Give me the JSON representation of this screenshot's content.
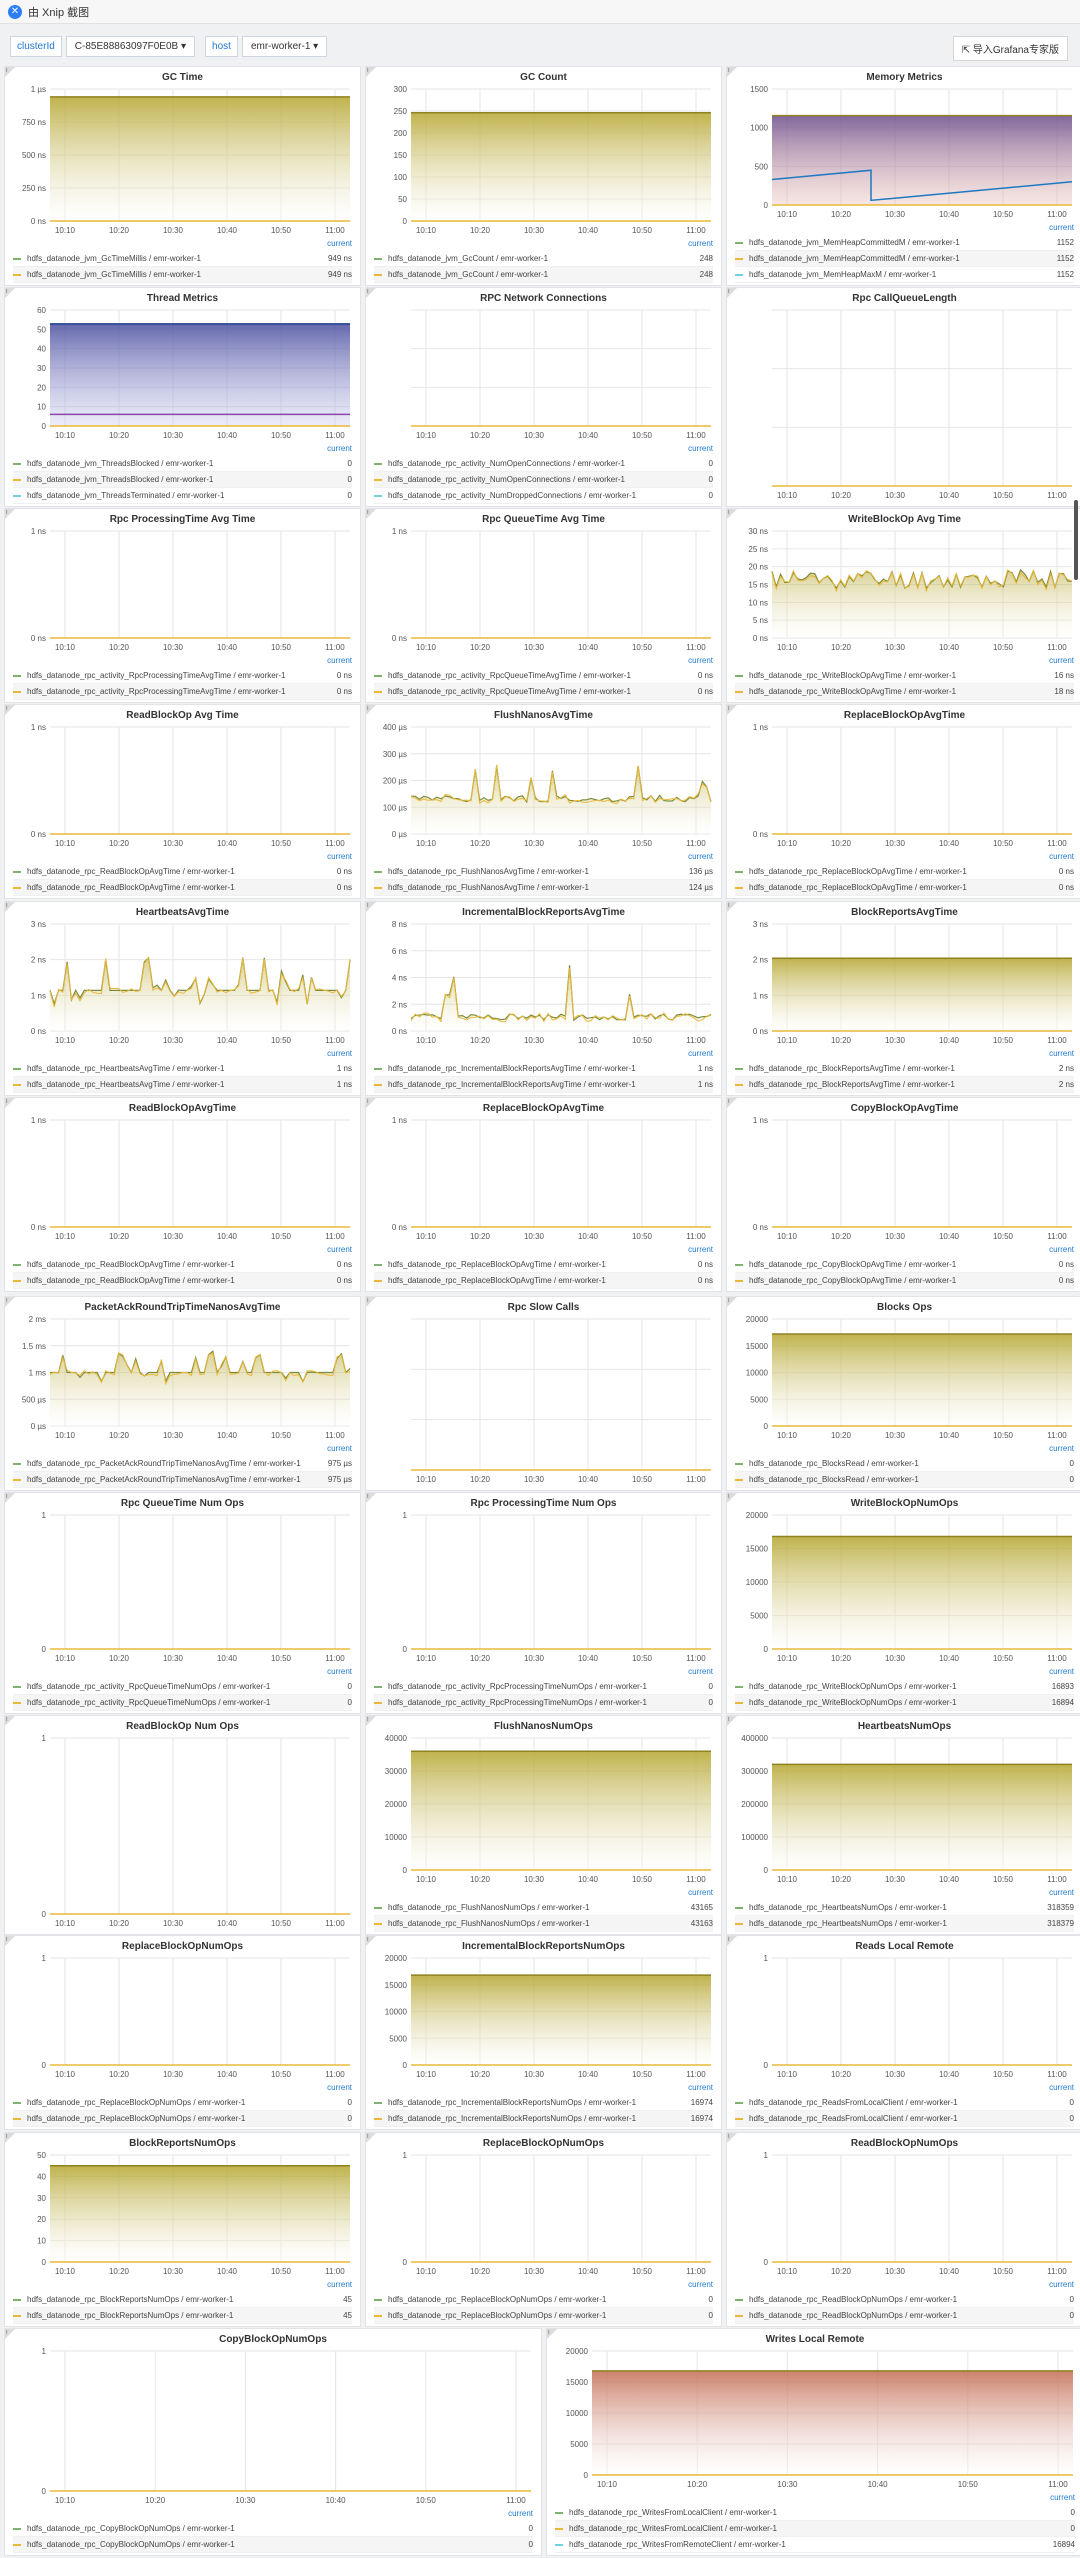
{
  "app": {
    "title": "由 Xnip 截图"
  },
  "filters": {
    "cluster_label": "clusterId",
    "cluster_value": "C-85E88863097F0E0B",
    "host_label": "host",
    "host_value": "emr-worker-1"
  },
  "toolbar": {
    "import_label": "导入Grafana专家版"
  },
  "current_label": "current",
  "info_icon": "i",
  "colors": {
    "olive": "#b5a52e",
    "green": "#7eb26d",
    "yellow": "#eab839",
    "purple": "#6b4d8c",
    "blue": "#1f78c1",
    "orange": "#ef843c"
  },
  "x_ticks": [
    "10:10",
    "10:20",
    "10:30",
    "10:40",
    "10:50",
    "11:00"
  ],
  "panels": [
    {
      "title": "GC Time",
      "y_ticks": [
        "1 µs",
        "750 ns",
        "500 ns",
        "250 ns",
        "0 ns"
      ],
      "type": "fill_full",
      "level": 0.94,
      "legend": [
        [
          "hdfs_datanode_jvm_GcTimeMillis / emr-worker-1",
          "949 ns"
        ],
        [
          "hdfs_datanode_jvm_GcTimeMillis / emr-worker-1",
          "949 ns"
        ]
      ]
    },
    {
      "title": "GC Count",
      "y_ticks": [
        "300",
        "250",
        "200",
        "150",
        "100",
        "50",
        "0"
      ],
      "type": "fill_full",
      "level": 0.82,
      "legend": [
        [
          "hdfs_datanode_jvm_GcCount / emr-worker-1",
          "248"
        ],
        [
          "hdfs_datanode_jvm_GcCount / emr-worker-1",
          "248"
        ]
      ]
    },
    {
      "title": "Memory Metrics",
      "y_ticks": [
        "1500",
        "1000",
        "500",
        "0"
      ],
      "type": "memory",
      "level": 0.77,
      "legend": [
        [
          "hdfs_datanode_jvm_MemHeapCommittedM / emr-worker-1",
          "1152"
        ],
        [
          "hdfs_datanode_jvm_MemHeapCommittedM / emr-worker-1",
          "1152"
        ],
        [
          "hdfs_datanode_jvm_MemHeapMaxM / emr-worker-1",
          "1152"
        ]
      ]
    },
    {
      "title": "Thread Metrics",
      "y_ticks": [
        "60",
        "50",
        "40",
        "30",
        "20",
        "10",
        "0"
      ],
      "type": "thread",
      "level": 0.88,
      "legend": [
        [
          "hdfs_datanode_jvm_ThreadsBlocked / emr-worker-1",
          "0"
        ],
        [
          "hdfs_datanode_jvm_ThreadsBlocked / emr-worker-1",
          "0"
        ],
        [
          "hdfs_datanode_jvm_ThreadsTerminated / emr-worker-1",
          "0"
        ]
      ]
    },
    {
      "title": "RPC Network Connections",
      "y_ticks": [],
      "type": "flat",
      "level": 0,
      "legend": [
        [
          "hdfs_datanode_rpc_activity_NumOpenConnections / emr-worker-1",
          "0"
        ],
        [
          "hdfs_datanode_rpc_activity_NumOpenConnections / emr-worker-1",
          "0"
        ],
        [
          "hdfs_datanode_rpc_activity_NumDroppedConnections / emr-worker-1",
          "0"
        ]
      ]
    },
    {
      "title": "Rpc CallQueueLength",
      "y_ticks": [],
      "type": "flat",
      "level": 0,
      "legend": []
    },
    {
      "title": "Rpc ProcessingTime Avg Time",
      "y_ticks": [
        "1 ns",
        "0 ns"
      ],
      "type": "flat",
      "level": 0,
      "legend": [
        [
          "hdfs_datanode_rpc_activity_RpcProcessingTimeAvgTime / emr-worker-1",
          "0 ns"
        ],
        [
          "hdfs_datanode_rpc_activity_RpcProcessingTimeAvgTime / emr-worker-1",
          "0 ns"
        ]
      ]
    },
    {
      "title": "Rpc QueueTime Avg Time",
      "y_ticks": [
        "1 ns",
        "0 ns"
      ],
      "type": "flat",
      "level": 0,
      "legend": [
        [
          "hdfs_datanode_rpc_activity_RpcQueueTimeAvgTime / emr-worker-1",
          "0 ns"
        ],
        [
          "hdfs_datanode_rpc_activity_RpcQueueTimeAvgTime / emr-worker-1",
          "0 ns"
        ]
      ]
    },
    {
      "title": "WriteBlockOp Avg Time",
      "y_ticks": [
        "30 ns",
        "25 ns",
        "20 ns",
        "15 ns",
        "10 ns",
        "5 ns",
        "0 ns"
      ],
      "type": "noisy",
      "level": 0.55,
      "amp": 0.18,
      "legend": [
        [
          "hdfs_datanode_rpc_WriteBlockOpAvgTime / emr-worker-1",
          "16 ns"
        ],
        [
          "hdfs_datanode_rpc_WriteBlockOpAvgTime / emr-worker-1",
          "18 ns"
        ]
      ]
    },
    {
      "title": "ReadBlockOp Avg Time",
      "y_ticks": [
        "1 ns",
        "0 ns"
      ],
      "type": "flat",
      "level": 0,
      "legend": [
        [
          "hdfs_datanode_rpc_ReadBlockOpAvgTime / emr-worker-1",
          "0 ns"
        ],
        [
          "hdfs_datanode_rpc_ReadBlockOpAvgTime / emr-worker-1",
          "0 ns"
        ]
      ]
    },
    {
      "title": "FlushNanosAvgTime",
      "y_ticks": [
        "400 µs",
        "300 µs",
        "200 µs",
        "100 µs",
        "0 µs"
      ],
      "type": "spiky",
      "level": 0.3,
      "amp": 0.5,
      "legend": [
        [
          "hdfs_datanode_rpc_FlushNanosAvgTime / emr-worker-1",
          "136 µs"
        ],
        [
          "hdfs_datanode_rpc_FlushNanosAvgTime / emr-worker-1",
          "124 µs"
        ]
      ]
    },
    {
      "title": "ReplaceBlockOpAvgTime",
      "y_ticks": [
        "1 ns",
        "0 ns"
      ],
      "type": "flat",
      "level": 0,
      "legend": [
        [
          "hdfs_datanode_rpc_ReplaceBlockOpAvgTime / emr-worker-1",
          "0 ns"
        ],
        [
          "hdfs_datanode_rpc_ReplaceBlockOpAvgTime / emr-worker-1",
          "0 ns"
        ]
      ]
    },
    {
      "title": "HeartbeatsAvgTime",
      "y_ticks": [
        "3 ns",
        "2 ns",
        "1 ns",
        "0 ns"
      ],
      "type": "step",
      "level": 0.38,
      "amp": 0.22,
      "legend": [
        [
          "hdfs_datanode_rpc_HeartbeatsAvgTime / emr-worker-1",
          "1 ns"
        ],
        [
          "hdfs_datanode_rpc_HeartbeatsAvgTime / emr-worker-1",
          "1 ns"
        ]
      ]
    },
    {
      "title": "IncrementalBlockReportsAvgTime",
      "y_ticks": [
        "8 ns",
        "6 ns",
        "4 ns",
        "2 ns",
        "0 ns"
      ],
      "type": "spiky",
      "level": 0.1,
      "amp": 0.6,
      "legend": [
        [
          "hdfs_datanode_rpc_IncrementalBlockReportsAvgTime / emr-worker-1",
          "1 ns"
        ],
        [
          "hdfs_datanode_rpc_IncrementalBlockReportsAvgTime / emr-worker-1",
          "1 ns"
        ]
      ]
    },
    {
      "title": "BlockReportsAvgTime",
      "y_ticks": [
        "3 ns",
        "2 ns",
        "1 ns",
        "0 ns"
      ],
      "type": "fill_full",
      "level": 0.68,
      "legend": [
        [
          "hdfs_datanode_rpc_BlockReportsAvgTime / emr-worker-1",
          "2 ns"
        ],
        [
          "hdfs_datanode_rpc_BlockReportsAvgTime / emr-worker-1",
          "2 ns"
        ]
      ]
    },
    {
      "title": "ReadBlockOpAvgTime",
      "y_ticks": [
        "1 ns",
        "0 ns"
      ],
      "type": "flat",
      "level": 0,
      "legend": [
        [
          "hdfs_datanode_rpc_ReadBlockOpAvgTime / emr-worker-1",
          "0 ns"
        ],
        [
          "hdfs_datanode_rpc_ReadBlockOpAvgTime / emr-worker-1",
          "0 ns"
        ]
      ]
    },
    {
      "title": "ReplaceBlockOpAvgTime",
      "y_ticks": [
        "1 ns",
        "0 ns"
      ],
      "type": "flat",
      "level": 0,
      "legend": [
        [
          "hdfs_datanode_rpc_ReplaceBlockOpAvgTime / emr-worker-1",
          "0 ns"
        ],
        [
          "hdfs_datanode_rpc_ReplaceBlockOpAvgTime / emr-worker-1",
          "0 ns"
        ]
      ]
    },
    {
      "title": "CopyBlockOpAvgTime",
      "y_ticks": [
        "1 ns",
        "0 ns"
      ],
      "type": "flat",
      "level": 0,
      "legend": [
        [
          "hdfs_datanode_rpc_CopyBlockOpAvgTime / emr-worker-1",
          "0 ns"
        ],
        [
          "hdfs_datanode_rpc_CopyBlockOpAvgTime / emr-worker-1",
          "0 ns"
        ]
      ]
    },
    {
      "title": "PacketAckRoundTripTimeNanosAvgTime",
      "y_ticks": [
        "2 ms",
        "1.5 ms",
        "1 ms",
        "500 µs",
        "0 µs"
      ],
      "type": "step",
      "level": 0.5,
      "amp": 0.15,
      "legend": [
        [
          "hdfs_datanode_rpc_PacketAckRoundTripTimeNanosAvgTime / emr-worker-1",
          "975 µs"
        ],
        [
          "hdfs_datanode_rpc_PacketAckRoundTripTimeNanosAvgTime / emr-worker-1",
          "975 µs"
        ]
      ]
    },
    {
      "title": "Rpc Slow Calls",
      "y_ticks": [],
      "type": "flat",
      "level": 0,
      "legend": []
    },
    {
      "title": "Blocks Ops",
      "y_ticks": [
        "20000",
        "15000",
        "10000",
        "5000",
        "0"
      ],
      "type": "fill_full",
      "level": 0.86,
      "legend": [
        [
          "hdfs_datanode_rpc_BlocksRead / emr-worker-1",
          "0"
        ],
        [
          "hdfs_datanode_rpc_BlocksRead / emr-worker-1",
          "0"
        ]
      ]
    },
    {
      "title": "Rpc QueueTime Num Ops",
      "y_ticks": [
        "1",
        "0"
      ],
      "type": "flat",
      "level": 0,
      "legend": [
        [
          "hdfs_datanode_rpc_activity_RpcQueueTimeNumOps / emr-worker-1",
          "0"
        ],
        [
          "hdfs_datanode_rpc_activity_RpcQueueTimeNumOps / emr-worker-1",
          "0"
        ]
      ]
    },
    {
      "title": "Rpc ProcessingTime Num Ops",
      "y_ticks": [
        "1",
        "0"
      ],
      "type": "flat",
      "level": 0,
      "legend": [
        [
          "hdfs_datanode_rpc_activity_RpcProcessingTimeNumOps / emr-worker-1",
          "0"
        ],
        [
          "hdfs_datanode_rpc_activity_RpcProcessingTimeNumOps / emr-worker-1",
          "0"
        ]
      ]
    },
    {
      "title": "WriteBlockOpNumOps",
      "y_ticks": [
        "20000",
        "15000",
        "10000",
        "5000",
        "0"
      ],
      "type": "fill_full",
      "level": 0.84,
      "legend": [
        [
          "hdfs_datanode_rpc_WriteBlockOpNumOps / emr-worker-1",
          "16893"
        ],
        [
          "hdfs_datanode_rpc_WriteBlockOpNumOps / emr-worker-1",
          "16894"
        ]
      ]
    },
    {
      "title": "ReadBlockOp Num Ops",
      "y_ticks": [
        "1",
        "0"
      ],
      "type": "flat",
      "level": 0,
      "legend": []
    },
    {
      "title": "FlushNanosNumOps",
      "y_ticks": [
        "40000",
        "30000",
        "20000",
        "10000",
        "0"
      ],
      "type": "fill_full",
      "level": 0.9,
      "legend": [
        [
          "hdfs_datanode_rpc_FlushNanosNumOps / emr-worker-1",
          "43165"
        ],
        [
          "hdfs_datanode_rpc_FlushNanosNumOps / emr-worker-1",
          "43163"
        ]
      ]
    },
    {
      "title": "HeartbeatsNumOps",
      "y_ticks": [
        "400000",
        "300000",
        "200000",
        "100000",
        "0"
      ],
      "type": "fill_full",
      "level": 0.8,
      "legend": [
        [
          "hdfs_datanode_rpc_HeartbeatsNumOps / emr-worker-1",
          "318359"
        ],
        [
          "hdfs_datanode_rpc_HeartbeatsNumOps / emr-worker-1",
          "318379"
        ]
      ]
    },
    {
      "title": "ReplaceBlockOpNumOps",
      "y_ticks": [
        "1",
        "0"
      ],
      "type": "flat",
      "level": 0,
      "legend": [
        [
          "hdfs_datanode_rpc_ReplaceBlockOpNumOps / emr-worker-1",
          "0"
        ],
        [
          "hdfs_datanode_rpc_ReplaceBlockOpNumOps / emr-worker-1",
          "0"
        ]
      ]
    },
    {
      "title": "IncrementalBlockReportsNumOps",
      "y_ticks": [
        "20000",
        "15000",
        "10000",
        "5000",
        "0"
      ],
      "type": "fill_full",
      "level": 0.84,
      "legend": [
        [
          "hdfs_datanode_rpc_IncrementalBlockReportsNumOps / emr-worker-1",
          "16974"
        ],
        [
          "hdfs_datanode_rpc_IncrementalBlockReportsNumOps / emr-worker-1",
          "16974"
        ]
      ]
    },
    {
      "title": "Reads Local Remote",
      "y_ticks": [
        "1",
        "0"
      ],
      "type": "flat",
      "level": 0,
      "legend": [
        [
          "hdfs_datanode_rpc_ReadsFromLocalClient / emr-worker-1",
          "0"
        ],
        [
          "hdfs_datanode_rpc_ReadsFromLocalClient / emr-worker-1",
          "0"
        ]
      ]
    },
    {
      "title": "BlockReportsNumOps",
      "y_ticks": [
        "50",
        "40",
        "30",
        "20",
        "10",
        "0"
      ],
      "type": "fill_full",
      "level": 0.9,
      "legend": [
        [
          "hdfs_datanode_rpc_BlockReportsNumOps / emr-worker-1",
          "45"
        ],
        [
          "hdfs_datanode_rpc_BlockReportsNumOps / emr-worker-1",
          "45"
        ]
      ]
    },
    {
      "title": "ReplaceBlockOpNumOps",
      "y_ticks": [
        "1",
        "0"
      ],
      "type": "flat",
      "level": 0,
      "legend": [
        [
          "hdfs_datanode_rpc_ReplaceBlockOpNumOps / emr-worker-1",
          "0"
        ],
        [
          "hdfs_datanode_rpc_ReplaceBlockOpNumOps / emr-worker-1",
          "0"
        ]
      ]
    },
    {
      "title": "ReadBlockOpNumOps",
      "y_ticks": [
        "1",
        "0"
      ],
      "type": "flat",
      "level": 0,
      "legend": [
        [
          "hdfs_datanode_rpc_ReadBlockOpNumOps / emr-worker-1",
          "0"
        ],
        [
          "hdfs_datanode_rpc_ReadBlockOpNumOps / emr-worker-1",
          "0"
        ]
      ]
    },
    {
      "title": "CopyBlockOpNumOps",
      "y_ticks": [
        "1",
        "0"
      ],
      "type": "flat",
      "level": 0,
      "legend": [
        [
          "hdfs_datanode_rpc_CopyBlockOpNumOps / emr-worker-1",
          "0"
        ],
        [
          "hdfs_datanode_rpc_CopyBlockOpNumOps / emr-worker-1",
          "0"
        ]
      ]
    },
    {
      "title": "Writes Local Remote",
      "y_ticks": [
        "20000",
        "15000",
        "10000",
        "5000",
        "0"
      ],
      "type": "fill_full",
      "level": 0.84,
      "legend": [
        [
          "hdfs_datanode_rpc_WritesFromLocalClient / emr-worker-1",
          "0"
        ],
        [
          "hdfs_datanode_rpc_WritesFromLocalClient / emr-worker-1",
          "0"
        ],
        [
          "hdfs_datanode_rpc_WritesFromRemoteClient / emr-worker-1",
          "16894"
        ]
      ]
    }
  ]
}
